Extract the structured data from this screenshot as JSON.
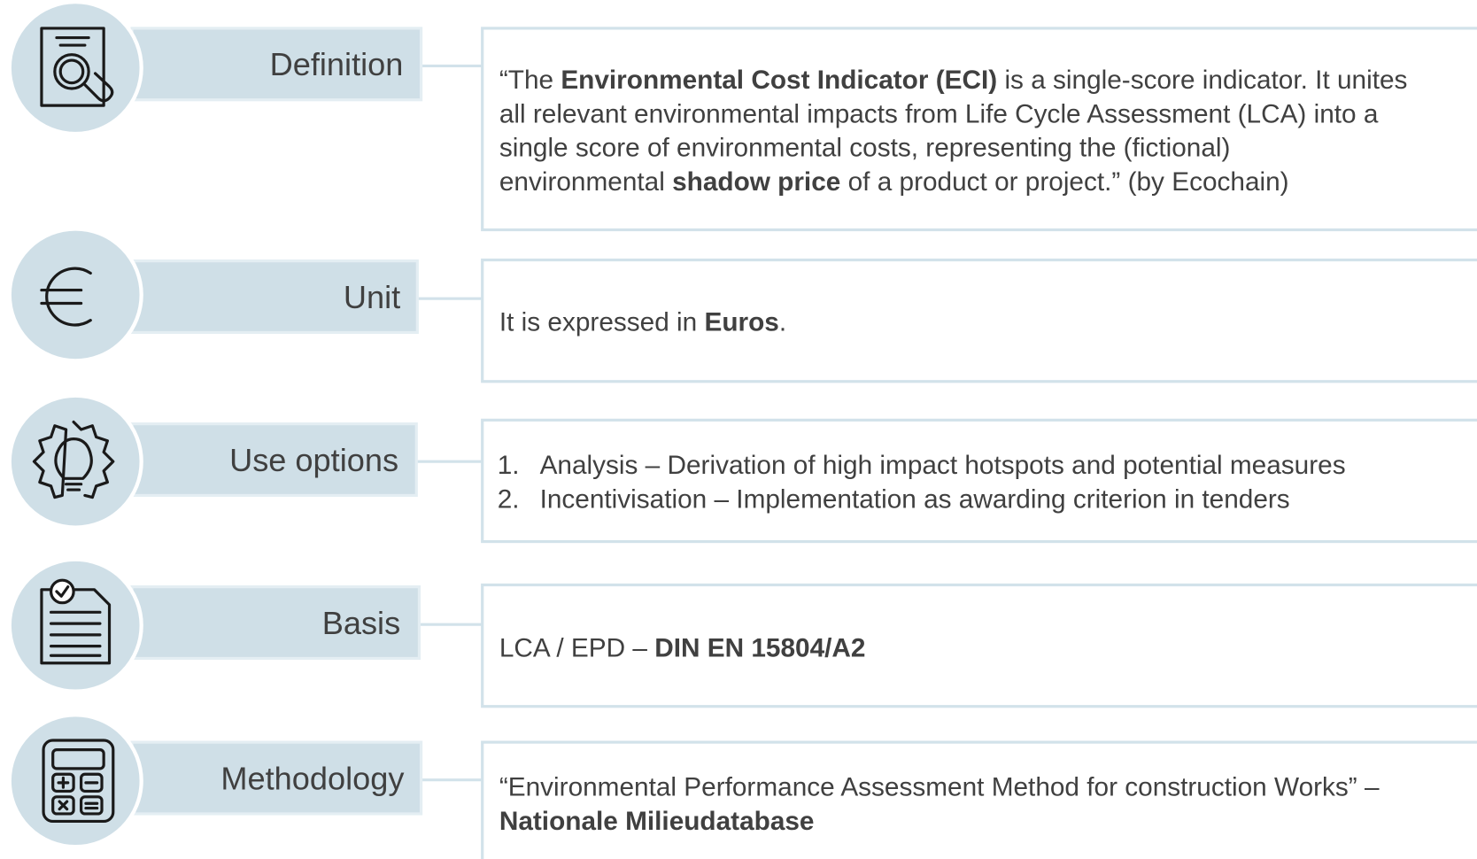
{
  "rows": [
    {
      "label": "Definition",
      "lines": [
        [
          {
            "text": "“The "
          },
          {
            "text": "Environmental Cost Indicator (ECI)",
            "bold": true
          },
          {
            "text": " is a single-score indicator. It unites"
          }
        ],
        [
          {
            "text": "all relevant environmental impacts from Life Cycle Assessment (LCA) into a"
          }
        ],
        [
          {
            "text": "single score of environmental costs, representing the (fictional)"
          }
        ],
        [
          {
            "text": "environmental "
          },
          {
            "text": "shadow price",
            "bold": true
          },
          {
            "text": " of a product or project.” (by Ecochain)"
          }
        ]
      ]
    },
    {
      "label": "Unit",
      "lines": [
        [
          {
            "text": "It is expressed in "
          },
          {
            "text": "Euros",
            "bold": true
          },
          {
            "text": "."
          }
        ]
      ]
    },
    {
      "label": "Use options",
      "items": [
        {
          "marker": "1.",
          "text": "Analysis – Derivation of high impact hotspots and potential measures"
        },
        {
          "marker": "2.",
          "text": "Incentivisation – Implementation as awarding criterion in tenders"
        }
      ]
    },
    {
      "label": "Basis",
      "lines": [
        [
          {
            "text": "LCA / EPD – "
          },
          {
            "text": "DIN EN 15804/A2",
            "bold": true
          }
        ]
      ]
    },
    {
      "label": "Methodology",
      "lines": [
        [
          {
            "text": "“Environmental Performance Assessment Method for construction Works” –"
          }
        ],
        [
          {
            "text": "Nationale Milieudatabase",
            "bold": true
          }
        ]
      ]
    }
  ]
}
